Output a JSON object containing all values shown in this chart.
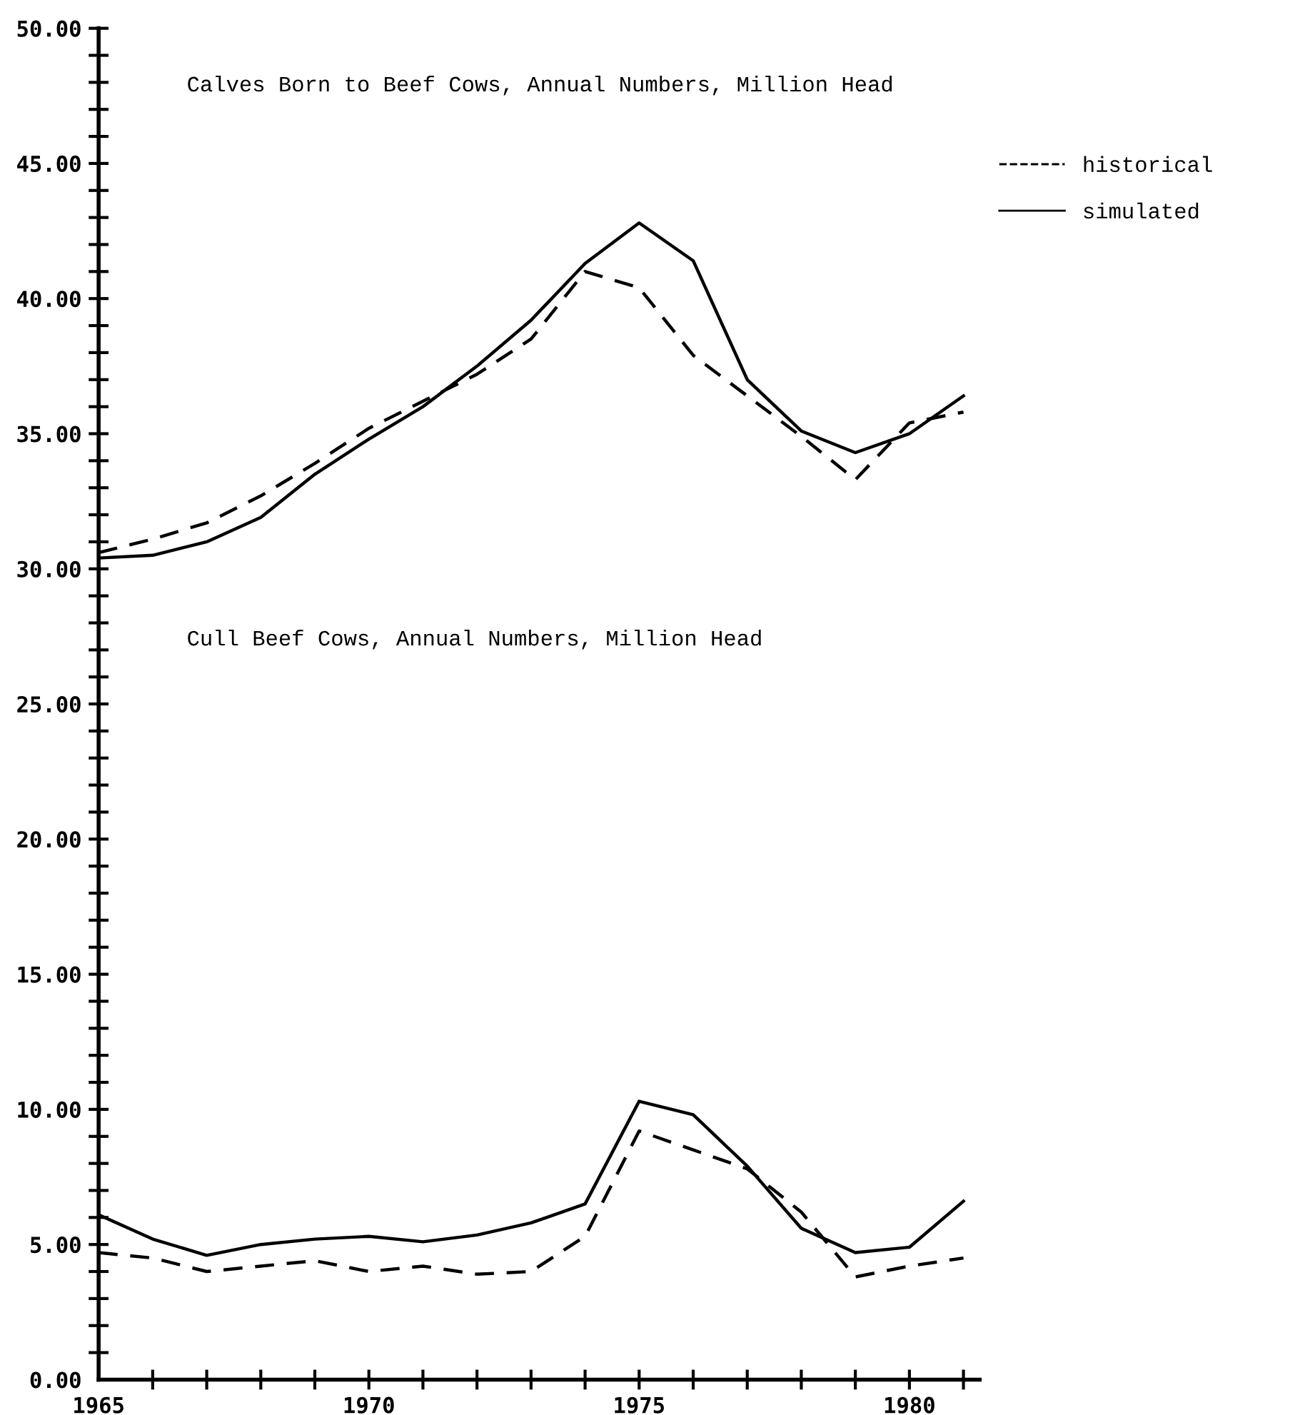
{
  "chart_data": {
    "type": "line",
    "x": [
      1965,
      1966,
      1967,
      1968,
      1969,
      1970,
      1971,
      1972,
      1973,
      1974,
      1975,
      1976,
      1977,
      1978,
      1979,
      1980,
      1981
    ],
    "series": [
      {
        "name": "historical",
        "color": "#000000",
        "line_style": "dashed",
        "values": [
          30.6,
          31.1,
          31.7,
          32.7,
          33.9,
          35.2,
          36.2,
          37.2,
          38.5,
          41.0,
          40.4,
          37.9,
          36.4,
          34.9,
          33.3,
          35.4,
          35.8
        ]
      },
      {
        "name": "simulated",
        "color": "#000000",
        "line_style": "solid",
        "values": [
          30.4,
          30.5,
          31.0,
          31.9,
          33.5,
          34.8,
          36.0,
          37.5,
          39.2,
          41.3,
          42.8,
          41.4,
          37.0,
          35.1,
          34.3,
          35.0,
          36.4
        ]
      },
      {
        "color": "#000000",
        "line_style": "dashed",
        "values": [
          4.7,
          4.5,
          4.0,
          4.2,
          4.4,
          4.0,
          4.2,
          3.9,
          4.0,
          5.3,
          9.2,
          8.5,
          7.8,
          6.2,
          3.8,
          4.2,
          4.5
        ]
      },
      {
        "color": "#000000",
        "line_style": "solid",
        "values": [
          6.1,
          5.2,
          4.6,
          5.0,
          5.2,
          5.3,
          5.1,
          5.35,
          5.8,
          6.5,
          10.3,
          9.8,
          7.9,
          5.6,
          4.7,
          4.9,
          6.6
        ]
      }
    ],
    "annotations": [
      "Calves Born to Beef Cows, Annual Numbers, Million Head",
      "Cull Beef Cows, Annual Numbers, Million Head"
    ],
    "xlim": [
      1965,
      1981.3
    ],
    "xticks": [
      1965,
      {
        "value": 1966,
        "label": null
      },
      {
        "value": 1967,
        "label": null
      },
      {
        "value": 1968,
        "label": null
      },
      {
        "value": 1969,
        "label": null
      },
      1970,
      {
        "value": 1971,
        "label": null
      },
      {
        "value": 1972,
        "label": null
      },
      {
        "value": 1973,
        "label": null
      },
      {
        "value": 1974,
        "label": null
      },
      1975,
      {
        "value": 1976,
        "label": null
      },
      {
        "value": 1977,
        "label": null
      },
      {
        "value": 1978,
        "label": null
      },
      {
        "value": 1979,
        "label": null
      },
      1980,
      {
        "value": 1981,
        "label": null
      }
    ],
    "ylim": [
      0,
      50
    ],
    "yticks": [
      {
        "value": 0,
        "label": "0.00"
      },
      {
        "value": 1,
        "label": null
      },
      {
        "value": 2,
        "label": null
      },
      {
        "value": 3,
        "label": null
      },
      {
        "value": 4,
        "label": null
      },
      {
        "value": 5,
        "label": "5.00"
      },
      {
        "value": 6,
        "label": null
      },
      {
        "value": 7,
        "label": null
      },
      {
        "value": 8,
        "label": null
      },
      {
        "value": 9,
        "label": null
      },
      {
        "value": 10,
        "label": "10.00"
      },
      {
        "value": 11,
        "label": null
      },
      {
        "value": 12,
        "label": null
      },
      {
        "value": 13,
        "label": null
      },
      {
        "value": 14,
        "label": null
      },
      {
        "value": 15,
        "label": "15.00"
      },
      {
        "value": 16,
        "label": null
      },
      {
        "value": 17,
        "label": null
      },
      {
        "value": 18,
        "label": null
      },
      {
        "value": 19,
        "label": null
      },
      {
        "value": 20,
        "label": "20.00"
      },
      {
        "value": 21,
        "label": null
      },
      {
        "value": 22,
        "label": null
      },
      {
        "value": 23,
        "label": null
      },
      {
        "value": 24,
        "label": null
      },
      {
        "value": 25,
        "label": "25.00"
      },
      {
        "value": 26,
        "label": null
      },
      {
        "value": 27,
        "label": null
      },
      {
        "value": 28,
        "label": null
      },
      {
        "value": 29,
        "label": null
      },
      {
        "value": 30,
        "label": "30.00"
      },
      {
        "value": 31,
        "label": null
      },
      {
        "value": 32,
        "label": null
      },
      {
        "value": 33,
        "label": null
      },
      {
        "value": 34,
        "label": null
      },
      {
        "value": 35,
        "label": "35.00"
      },
      {
        "value": 36,
        "label": null
      },
      {
        "value": 37,
        "label": null
      },
      {
        "value": 38,
        "label": null
      },
      {
        "value": 39,
        "label": null
      },
      {
        "value": 40,
        "label": "40.00"
      },
      {
        "value": 41,
        "label": null
      },
      {
        "value": 42,
        "label": null
      },
      {
        "value": 43,
        "label": null
      },
      {
        "value": 44,
        "label": null
      },
      {
        "value": 45,
        "label": "45.00"
      },
      {
        "value": 46,
        "label": null
      },
      {
        "value": 47,
        "label": null
      },
      {
        "value": 48,
        "label": null
      },
      {
        "value": 49,
        "label": null
      },
      {
        "value": 50,
        "label": "50.00"
      }
    ],
    "legend": "top right",
    "grid": false,
    "marker": "none"
  }
}
